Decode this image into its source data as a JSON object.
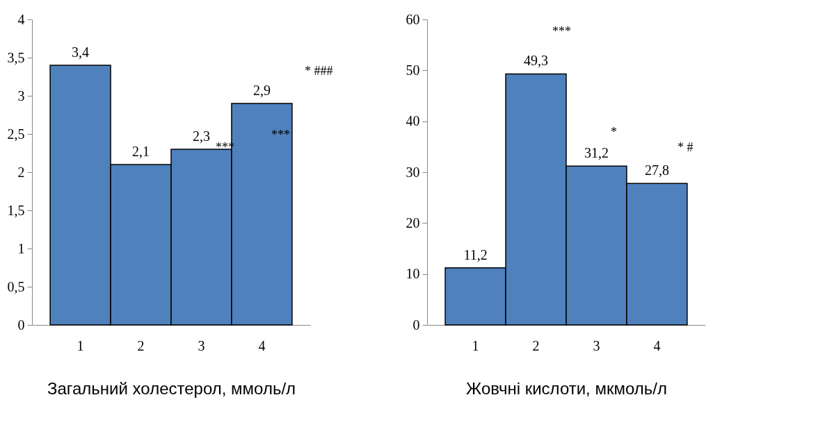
{
  "chart_data": [
    {
      "type": "bar",
      "categories": [
        "1",
        "2",
        "3",
        "4"
      ],
      "values": [
        3.4,
        2.1,
        2.3,
        2.9
      ],
      "colors": [
        "#4f81bd",
        "#4f81bd",
        "#4f81bd",
        "#4f81bd"
      ],
      "value_labels": [
        "3,4",
        "2,1",
        "2,3",
        "2,9"
      ],
      "ylim": [
        0,
        4
      ],
      "yticks": [
        0,
        {
          "value": 0.5,
          "label": "0,5"
        },
        1,
        {
          "value": 1.5,
          "label": "1,5"
        },
        2,
        {
          "value": 2.5,
          "label": "2,5"
        },
        3,
        {
          "value": 3.5,
          "label": "3,5"
        },
        4
      ],
      "xlabel": "Загальний холестерол, ммоль/л",
      "grid": false,
      "annotations": [
        "***",
        "***",
        "*  ###"
      ]
    },
    {
      "type": "bar",
      "categories": [
        "1",
        "2",
        "3",
        "4"
      ],
      "values": [
        11.2,
        49.3,
        31.2,
        27.8
      ],
      "colors": [
        "#4f81bd",
        "#4f81bd",
        "#4f81bd",
        "#4f81bd"
      ],
      "value_labels": [
        "11,2",
        "49,3",
        "31,2",
        "27,8"
      ],
      "ylim": [
        0,
        60
      ],
      "yticks": [
        0,
        10,
        20,
        30,
        40,
        50,
        60
      ],
      "xlabel": "Жовчні кислоти, мкмоль/л",
      "grid": false,
      "annotations": [
        "***",
        "*",
        "*  #"
      ]
    }
  ]
}
